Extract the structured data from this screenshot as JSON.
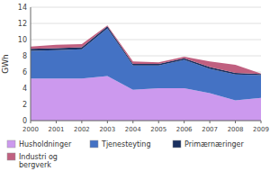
{
  "chart_data": {
    "type": "area",
    "stacked": true,
    "x": [
      2000,
      2001,
      2002,
      2003,
      2004,
      2005,
      2006,
      2007,
      2008,
      2009
    ],
    "xlim": [
      2000,
      2009
    ],
    "xticks": [
      2000,
      2001,
      2002,
      2003,
      2004,
      2005,
      2006,
      2007,
      2008,
      2009
    ],
    "ylabel": "GWh",
    "ylim": [
      0,
      14
    ],
    "yticks": [
      0,
      2,
      4,
      6,
      8,
      10,
      12,
      14
    ],
    "grid": true,
    "legend": "bottom",
    "series": [
      {
        "name": "Husholdninger",
        "color": "#cc99ee",
        "values": [
          5.2,
          5.2,
          5.2,
          5.5,
          3.8,
          4.0,
          4.0,
          3.4,
          2.5,
          2.8
        ]
      },
      {
        "name": "Tjenesteyting",
        "color": "#4472c4",
        "values": [
          3.4,
          3.5,
          3.6,
          5.9,
          3.0,
          2.8,
          3.5,
          3.0,
          3.2,
          2.8
        ]
      },
      {
        "name": "Primærnæringer",
        "color": "#1a3060",
        "values": [
          0.25,
          0.25,
          0.25,
          0.25,
          0.2,
          0.2,
          0.2,
          0.2,
          0.2,
          0.15
        ]
      },
      {
        "name": "Industri og\nbergverk",
        "color": "#c06080",
        "values": [
          0.3,
          0.4,
          0.4,
          0.1,
          0.3,
          0.2,
          0.2,
          0.7,
          1.0,
          0.05
        ]
      }
    ]
  }
}
